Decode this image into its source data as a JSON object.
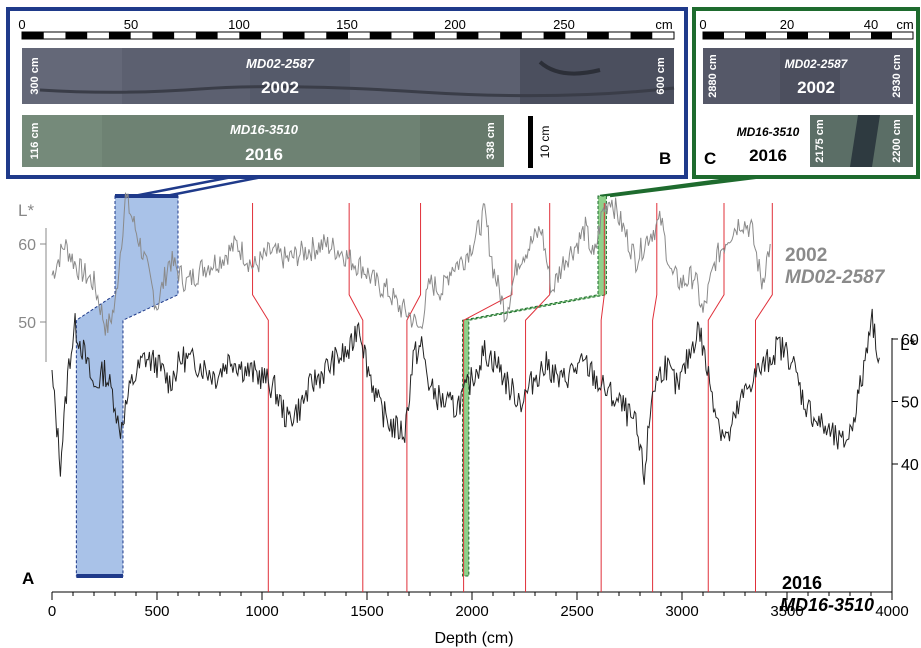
{
  "panel_a": {
    "label": "A",
    "core_top_year": "2002",
    "core_top_name": "MD02-2587",
    "core_bottom_year": "2016",
    "core_bottom_name": "MD16-3510",
    "left_axis_title": "L*",
    "right_axis_title": "L*",
    "x_axis_title": "Depth (cm)"
  },
  "panel_b": {
    "label": "B",
    "scale_unit": "cm",
    "scale_ticks": [
      "0",
      "50",
      "100",
      "150",
      "200",
      "250"
    ],
    "photo_top": {
      "name": "MD02-2587",
      "year": "2002",
      "start_depth": "300 cm",
      "end_depth": "600 cm"
    },
    "photo_bottom": {
      "name": "MD16-3510",
      "year": "2016",
      "start_depth": "116 cm",
      "end_depth": "338 cm"
    },
    "scale_bar_label": "10 cm"
  },
  "panel_c": {
    "label": "C",
    "scale_unit": "cm",
    "scale_ticks": [
      "0",
      "20",
      "40"
    ],
    "photo_top": {
      "name": "MD02-2587",
      "year": "2002",
      "start_depth": "2880 cm",
      "end_depth": "2930 cm"
    },
    "photo_bottom_name": "MD16-3510",
    "photo_bottom_year": "2016",
    "photo_bottom_start": "2175 cm",
    "photo_bottom_end": "2200 cm"
  },
  "colors": {
    "panel_b_frame": "#1f3a8a",
    "panel_c_frame": "#1e6b2e",
    "tie_lines": "#e0303a",
    "blue_fill": "#a9c2e8",
    "green_fill": "#8fd08a",
    "curve_2002": "#8a8a8a",
    "curve_2016": "#222222"
  },
  "chart_data": {
    "type": "line",
    "xlabel": "Depth (cm)",
    "xlim": [
      0,
      4000
    ],
    "x_ticks": [
      "0",
      "500",
      "1000",
      "1500",
      "2000",
      "2500",
      "3000",
      "3500",
      "4000"
    ],
    "series": [
      {
        "name": "2002 MD02-2587",
        "ylabel": "L*",
        "y_ticks": [
          "50",
          "60"
        ],
        "points": [
          [
            0,
            56
          ],
          [
            60,
            60
          ],
          [
            120,
            57
          ],
          [
            200,
            55
          ],
          [
            260,
            49
          ],
          [
            300,
            52
          ],
          [
            350,
            66
          ],
          [
            420,
            60
          ],
          [
            500,
            52
          ],
          [
            560,
            58
          ],
          [
            640,
            55
          ],
          [
            720,
            57
          ],
          [
            800,
            58
          ],
          [
            880,
            60
          ],
          [
            960,
            57
          ],
          [
            1040,
            59
          ],
          [
            1120,
            58
          ],
          [
            1200,
            59
          ],
          [
            1300,
            60
          ],
          [
            1380,
            59
          ],
          [
            1420,
            58
          ],
          [
            1480,
            57
          ],
          [
            1540,
            55
          ],
          [
            1600,
            54
          ],
          [
            1650,
            52
          ],
          [
            1700,
            51
          ],
          [
            1750,
            49
          ],
          [
            1800,
            55
          ],
          [
            1860,
            54
          ],
          [
            1900,
            57
          ],
          [
            1960,
            58
          ],
          [
            2020,
            61
          ],
          [
            2060,
            64
          ],
          [
            2100,
            57
          ],
          [
            2160,
            51
          ],
          [
            2220,
            58
          ],
          [
            2280,
            60
          ],
          [
            2330,
            62
          ],
          [
            2380,
            54
          ],
          [
            2440,
            58
          ],
          [
            2500,
            60
          ],
          [
            2540,
            62
          ],
          [
            2580,
            58
          ],
          [
            2620,
            64
          ],
          [
            2660,
            66
          ],
          [
            2720,
            62
          ],
          [
            2780,
            58
          ],
          [
            2840,
            61
          ],
          [
            2900,
            63
          ],
          [
            2950,
            56
          ],
          [
            3000,
            55
          ],
          [
            3060,
            56
          ],
          [
            3100,
            51
          ],
          [
            3160,
            58
          ],
          [
            3220,
            61
          ],
          [
            3280,
            63
          ],
          [
            3330,
            62
          ],
          [
            3380,
            55
          ],
          [
            3420,
            60
          ]
        ]
      },
      {
        "name": "2016 MD16-3510",
        "ylabel": "L*",
        "y_ticks": [
          "40",
          "50",
          "60"
        ],
        "points": [
          [
            0,
            54
          ],
          [
            40,
            40
          ],
          [
            80,
            56
          ],
          [
            110,
            62
          ],
          [
            150,
            58
          ],
          [
            200,
            52
          ],
          [
            250,
            55
          ],
          [
            300,
            50
          ],
          [
            320,
            45
          ],
          [
            380,
            53
          ],
          [
            440,
            57
          ],
          [
            500,
            56
          ],
          [
            560,
            53
          ],
          [
            620,
            57
          ],
          [
            700,
            56
          ],
          [
            780,
            54
          ],
          [
            850,
            57
          ],
          [
            920,
            55
          ],
          [
            1000,
            54
          ],
          [
            1060,
            52
          ],
          [
            1120,
            47
          ],
          [
            1180,
            49
          ],
          [
            1240,
            53
          ],
          [
            1300,
            55
          ],
          [
            1360,
            57
          ],
          [
            1420,
            58
          ],
          [
            1460,
            63
          ],
          [
            1500,
            56
          ],
          [
            1560,
            49
          ],
          [
            1620,
            46
          ],
          [
            1680,
            45
          ],
          [
            1720,
            57
          ],
          [
            1760,
            59
          ],
          [
            1800,
            52
          ],
          [
            1860,
            50
          ],
          [
            1920,
            49
          ],
          [
            1960,
            51
          ],
          [
            2020,
            55
          ],
          [
            2060,
            58
          ],
          [
            2120,
            56
          ],
          [
            2180,
            52
          ],
          [
            2240,
            50
          ],
          [
            2300,
            54
          ],
          [
            2360,
            56
          ],
          [
            2420,
            53
          ],
          [
            2480,
            55
          ],
          [
            2540,
            56
          ],
          [
            2600,
            53
          ],
          [
            2660,
            51
          ],
          [
            2720,
            49
          ],
          [
            2780,
            46
          ],
          [
            2820,
            38
          ],
          [
            2860,
            52
          ],
          [
            2920,
            56
          ],
          [
            2980,
            52
          ],
          [
            3040,
            58
          ],
          [
            3080,
            62
          ],
          [
            3120,
            55
          ],
          [
            3180,
            46
          ],
          [
            3220,
            44
          ],
          [
            3280,
            50
          ],
          [
            3340,
            54
          ],
          [
            3400,
            56
          ],
          [
            3460,
            59
          ],
          [
            3520,
            57
          ],
          [
            3580,
            50
          ],
          [
            3640,
            47
          ],
          [
            3700,
            45
          ],
          [
            3760,
            43
          ],
          [
            3800,
            45
          ],
          [
            3860,
            54
          ],
          [
            3900,
            64
          ],
          [
            3940,
            57
          ]
        ]
      }
    ],
    "tie_points_2002_to_2016": [
      [
        300,
        116
      ],
      [
        600,
        338
      ],
      [
        955,
        1030
      ],
      [
        1415,
        1480
      ],
      [
        1755,
        1690
      ],
      [
        2190,
        1960
      ],
      [
        2370,
        2255
      ],
      [
        2630,
        2615
      ],
      [
        2880,
        2860
      ],
      [
        3200,
        3125
      ],
      [
        3430,
        3350
      ]
    ]
  }
}
